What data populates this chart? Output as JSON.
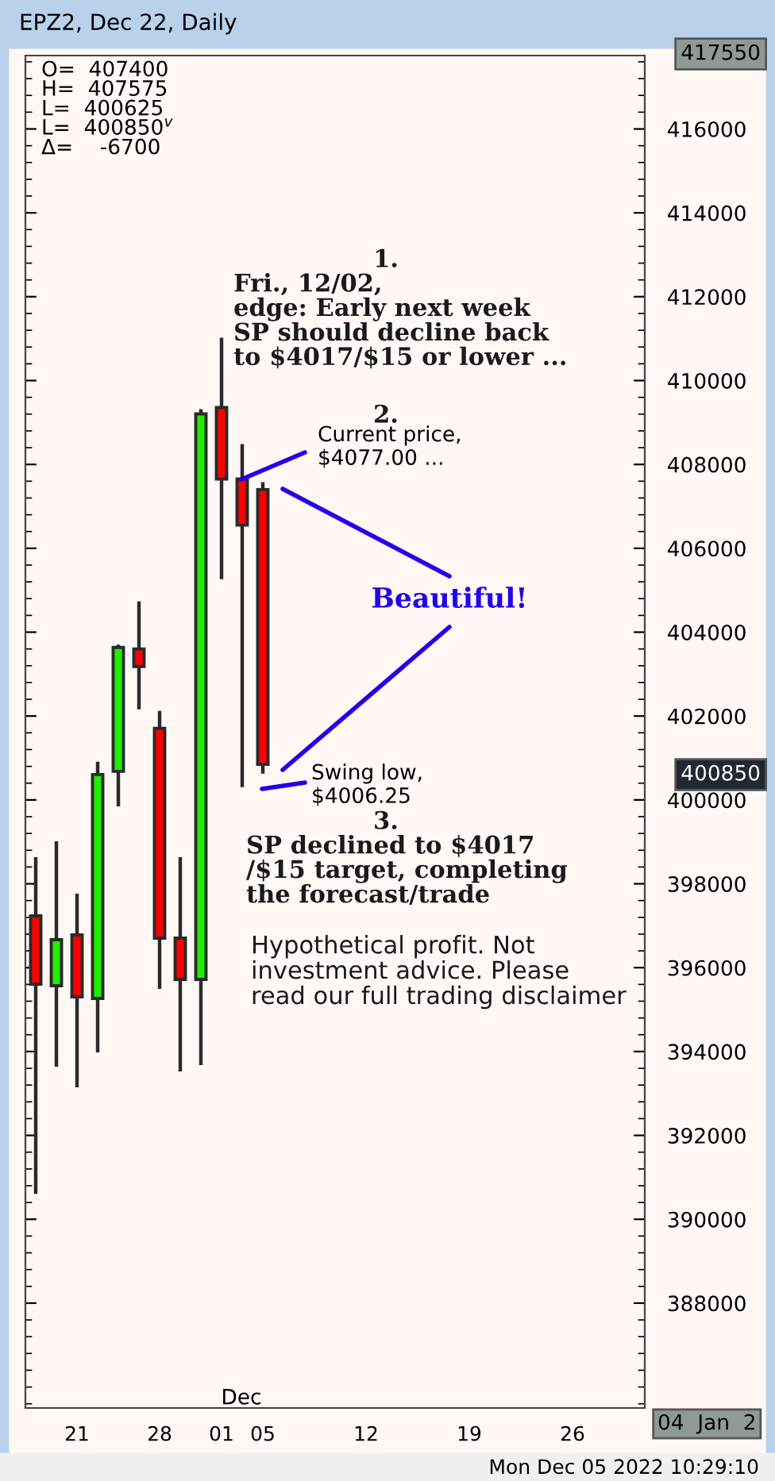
{
  "chart_data": {
    "type": "candlestick",
    "title": "EPZ2, Dec 22, Daily",
    "categories": [
      null,
      null,
      "21",
      null,
      null,
      null,
      "28",
      null,
      null,
      "01",
      null,
      "05",
      null,
      null,
      null,
      null,
      "12",
      null,
      null,
      null,
      null,
      "19",
      null,
      null,
      null,
      null,
      "26",
      null,
      null,
      null
    ],
    "ohlc": [
      [
        397235,
        398636,
        390606,
        395606
      ],
      [
        395568,
        399015,
        393636,
        396667
      ],
      [
        396780,
        397765,
        393144,
        395303
      ],
      [
        395265,
        400909,
        393977,
        400606
      ],
      [
        400682,
        403700,
        399848,
        403636
      ],
      [
        403598,
        404735,
        402159,
        403182
      ],
      [
        401705,
        402121,
        395492,
        396705
      ],
      [
        396705,
        398636,
        393523,
        395720
      ],
      [
        395720,
        409318,
        393674,
        409205
      ],
      [
        409356,
        411023,
        405265,
        407652
      ],
      [
        407652,
        408485,
        400303,
        406553
      ],
      [
        407400,
        407575,
        400625,
        400850
      ],
      null,
      null,
      null,
      null,
      null,
      null,
      null,
      null,
      null,
      null,
      null,
      null,
      null,
      null,
      null,
      null,
      null,
      null
    ],
    "colors": [
      "#ff0000",
      "#22ee00",
      "#ff0000",
      "#22ee00",
      "#22ee00",
      "#ff0000",
      "#ff0000",
      "#ff0000",
      "#22ee00",
      "#ff0000",
      "#ff0000",
      "#ff0000",
      null,
      null,
      null,
      null,
      null,
      null,
      null,
      null,
      null,
      null,
      null,
      null,
      null,
      null,
      null,
      null,
      null,
      null
    ],
    "ylim": [
      385500,
      417750
    ],
    "yticks": [
      388000,
      390000,
      392000,
      394000,
      396000,
      398000,
      400000,
      402000,
      404000,
      406000,
      408000,
      410000,
      412000,
      414000,
      416000
    ],
    "grid": false,
    "annotations": [
      "O=  407400\nH=  407575\nL=  400625\nL=  400850$^{v}$\nΔ=    -6700",
      "1.",
      "Fri., 12/02,\nedge: Early next week\nSP should decline back\nto $4017/$15 or lower ...",
      "2.",
      "Current price,\n$4077.00 ...",
      "Beautiful!",
      "Swing low,\n$4006.25",
      "3.",
      "SP declined to $4017\n/$15 target, completing\nthe forecast/trade",
      "Hypothetical profit. Not\ninvestment advice. Please\nread our full trading disclaimer",
      "Dec",
      "04  Jan  2",
      "400850",
      "417550",
      "Mon Dec 05 2022 10:29:10"
    ]
  }
}
